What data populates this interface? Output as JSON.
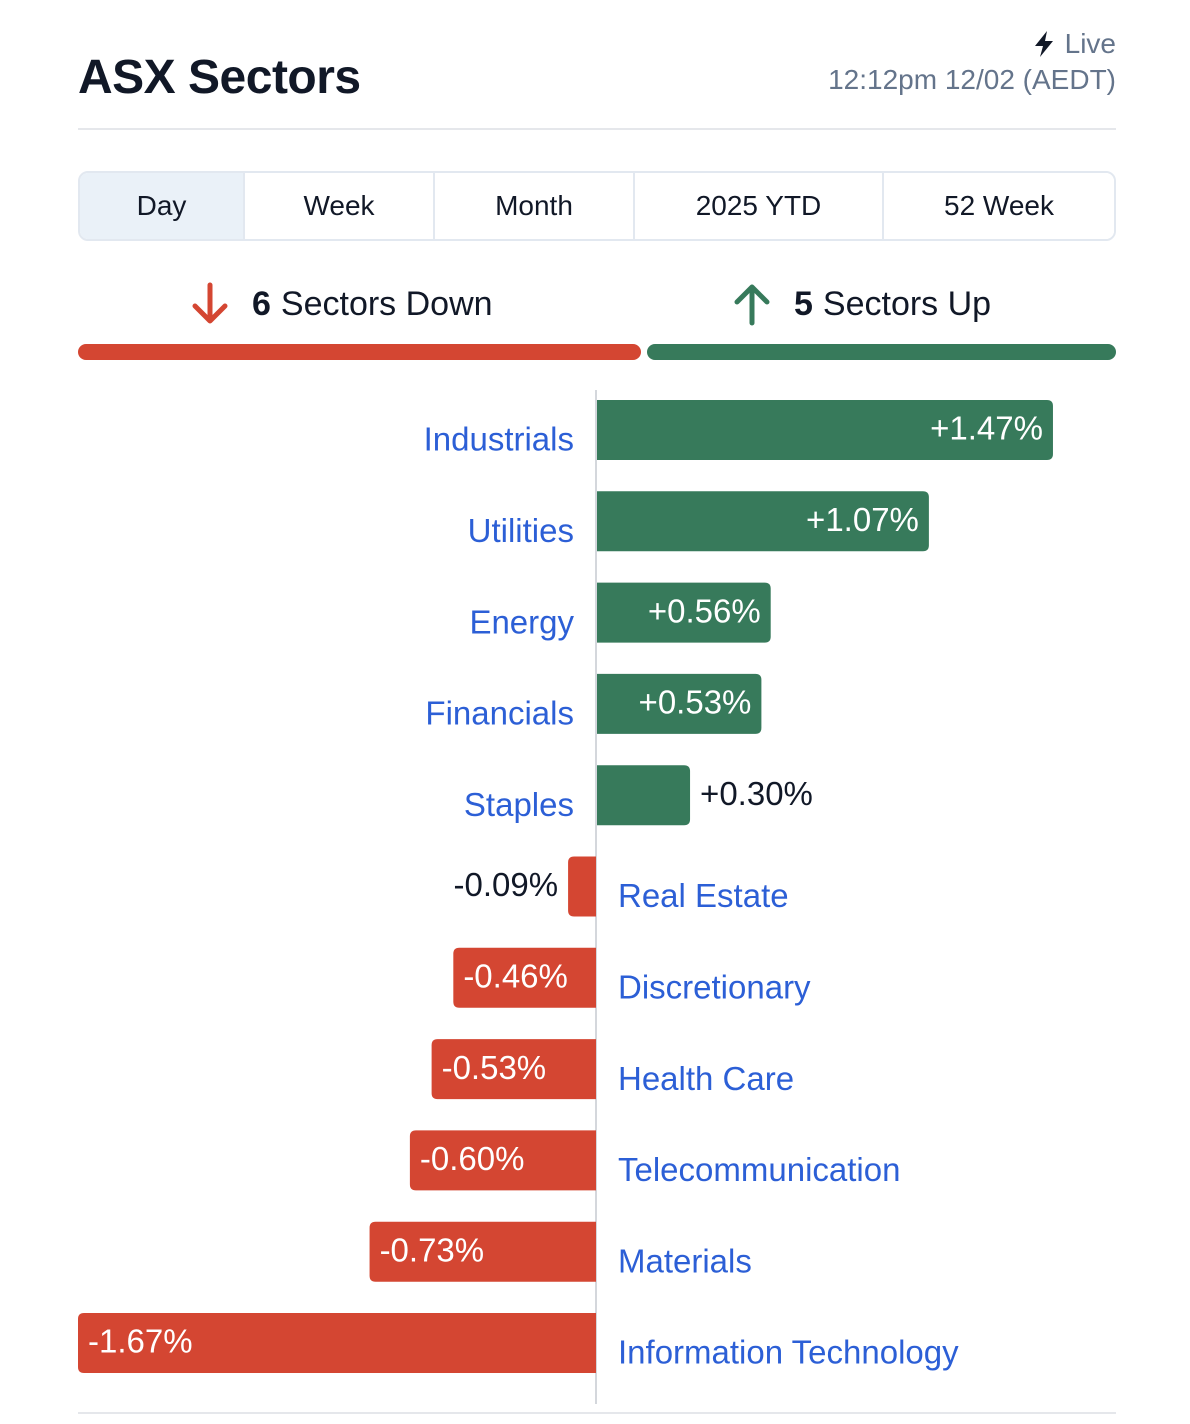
{
  "header": {
    "title": "ASX Sectors",
    "live_label": "Live",
    "live_icon": "lightning-icon",
    "timestamp": "12:12pm 12/02 (AEDT)"
  },
  "tabs": [
    {
      "label": "Day",
      "active": true
    },
    {
      "label": "Week",
      "active": false
    },
    {
      "label": "Month",
      "active": false
    },
    {
      "label": "2025 YTD",
      "active": false
    },
    {
      "label": "52 Week",
      "active": false
    }
  ],
  "summary": {
    "down": {
      "count": "6",
      "label": "Sectors Down",
      "icon": "arrow-down-icon"
    },
    "up": {
      "count": "5",
      "label": "Sectors Up",
      "icon": "arrow-up-icon"
    }
  },
  "colors": {
    "up": "#377a5b",
    "down": "#d44632",
    "link": "#2c5fd6"
  },
  "chart_data": {
    "type": "bar",
    "orientation": "horizontal",
    "categories": [
      "Industrials",
      "Utilities",
      "Energy",
      "Financials",
      "Staples",
      "Real Estate",
      "Discretionary",
      "Health Care",
      "Telecommunication",
      "Materials",
      "Information Technology"
    ],
    "values": [
      1.47,
      1.07,
      0.56,
      0.53,
      0.3,
      -0.09,
      -0.46,
      -0.53,
      -0.6,
      -0.73,
      -1.67
    ],
    "labels": [
      "+1.47%",
      "+1.07%",
      "+0.56%",
      "+0.53%",
      "+0.30%",
      "-0.09%",
      "-0.46%",
      "-0.53%",
      "-0.60%",
      "-0.73%",
      "-1.67%"
    ],
    "xlim": [
      -1.67,
      1.67
    ]
  }
}
